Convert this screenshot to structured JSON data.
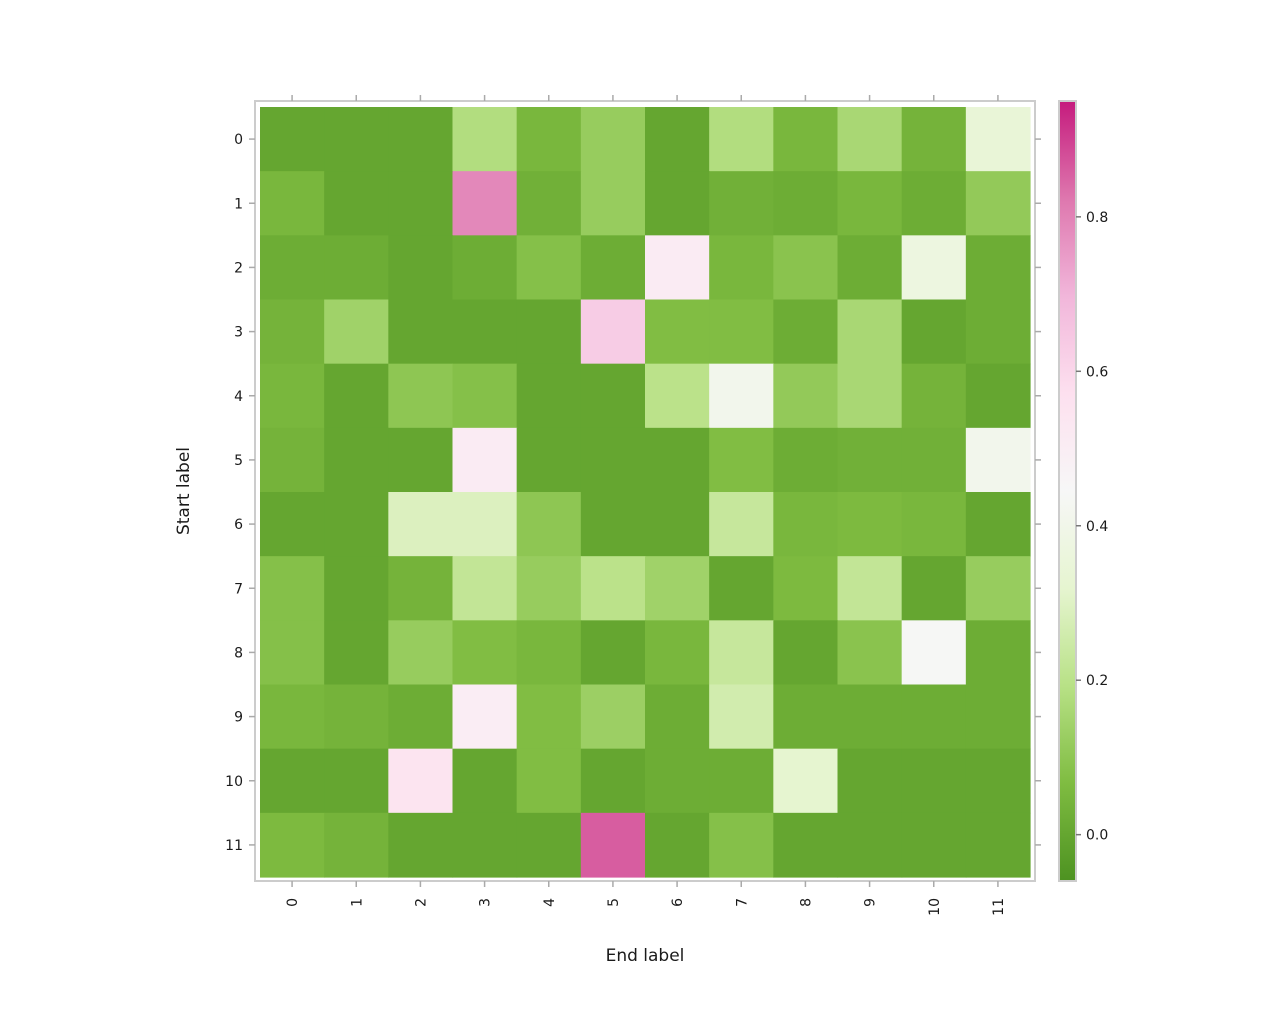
{
  "chart_data": {
    "type": "heatmap",
    "xlabel": "End label",
    "ylabel": "Start label",
    "x_categories": [
      "0",
      "1",
      "2",
      "3",
      "4",
      "5",
      "6",
      "7",
      "8",
      "9",
      "10",
      "11"
    ],
    "y_categories": [
      "0",
      "1",
      "2",
      "3",
      "4",
      "5",
      "6",
      "7",
      "8",
      "9",
      "10",
      "11"
    ],
    "values": [
      [
        0.0,
        0.0,
        0.0,
        0.18,
        0.05,
        0.12,
        0.0,
        0.18,
        0.05,
        0.16,
        0.04,
        0.34
      ],
      [
        0.05,
        0.0,
        0.0,
        0.79,
        0.03,
        0.12,
        0.0,
        0.03,
        0.02,
        0.05,
        0.02,
        0.11
      ],
      [
        0.02,
        0.02,
        0.0,
        0.02,
        0.08,
        0.02,
        0.51,
        0.05,
        0.09,
        0.02,
        0.37,
        0.02
      ],
      [
        0.04,
        0.14,
        0.0,
        0.0,
        0.0,
        0.63,
        0.07,
        0.07,
        0.02,
        0.16,
        0.0,
        0.02
      ],
      [
        0.05,
        0.0,
        0.1,
        0.08,
        0.0,
        0.0,
        0.2,
        0.41,
        0.11,
        0.16,
        0.04,
        0.0
      ],
      [
        0.04,
        0.0,
        0.0,
        0.51,
        0.0,
        0.0,
        0.0,
        0.07,
        0.02,
        0.03,
        0.03,
        0.41
      ],
      [
        0.0,
        0.0,
        0.29,
        0.29,
        0.1,
        0.0,
        0.0,
        0.23,
        0.05,
        0.06,
        0.05,
        0.0
      ],
      [
        0.08,
        0.0,
        0.04,
        0.22,
        0.12,
        0.2,
        0.14,
        0.0,
        0.06,
        0.22,
        0.0,
        0.12
      ],
      [
        0.08,
        0.0,
        0.12,
        0.07,
        0.05,
        0.0,
        0.05,
        0.23,
        0.0,
        0.09,
        0.44,
        0.02
      ],
      [
        0.05,
        0.04,
        0.02,
        0.5,
        0.07,
        0.13,
        0.02,
        0.26,
        0.02,
        0.02,
        0.02,
        0.02
      ],
      [
        0.0,
        0.0,
        0.55,
        0.0,
        0.07,
        0.0,
        0.02,
        0.02,
        0.32,
        0.0,
        0.0,
        0.0
      ],
      [
        0.06,
        0.04,
        0.0,
        0.0,
        0.0,
        0.86,
        0.0,
        0.08,
        0.0,
        0.0,
        0.0,
        0.0
      ]
    ],
    "colorbar": {
      "range": [
        -0.06,
        0.95
      ],
      "ticks": [
        0.0,
        0.2,
        0.4,
        0.6,
        0.8
      ],
      "tick_labels": [
        "0.0",
        "0.2",
        "0.4",
        "0.6",
        "0.8"
      ],
      "colormap": "PiYG",
      "colormap_stops": [
        "#4d9221",
        "#7fbc41",
        "#b8e186",
        "#e6f5d0",
        "#f7f7f7",
        "#fde0ef",
        "#f1b6da",
        "#de77ae",
        "#c51b7d"
      ]
    },
    "grid": false
  }
}
